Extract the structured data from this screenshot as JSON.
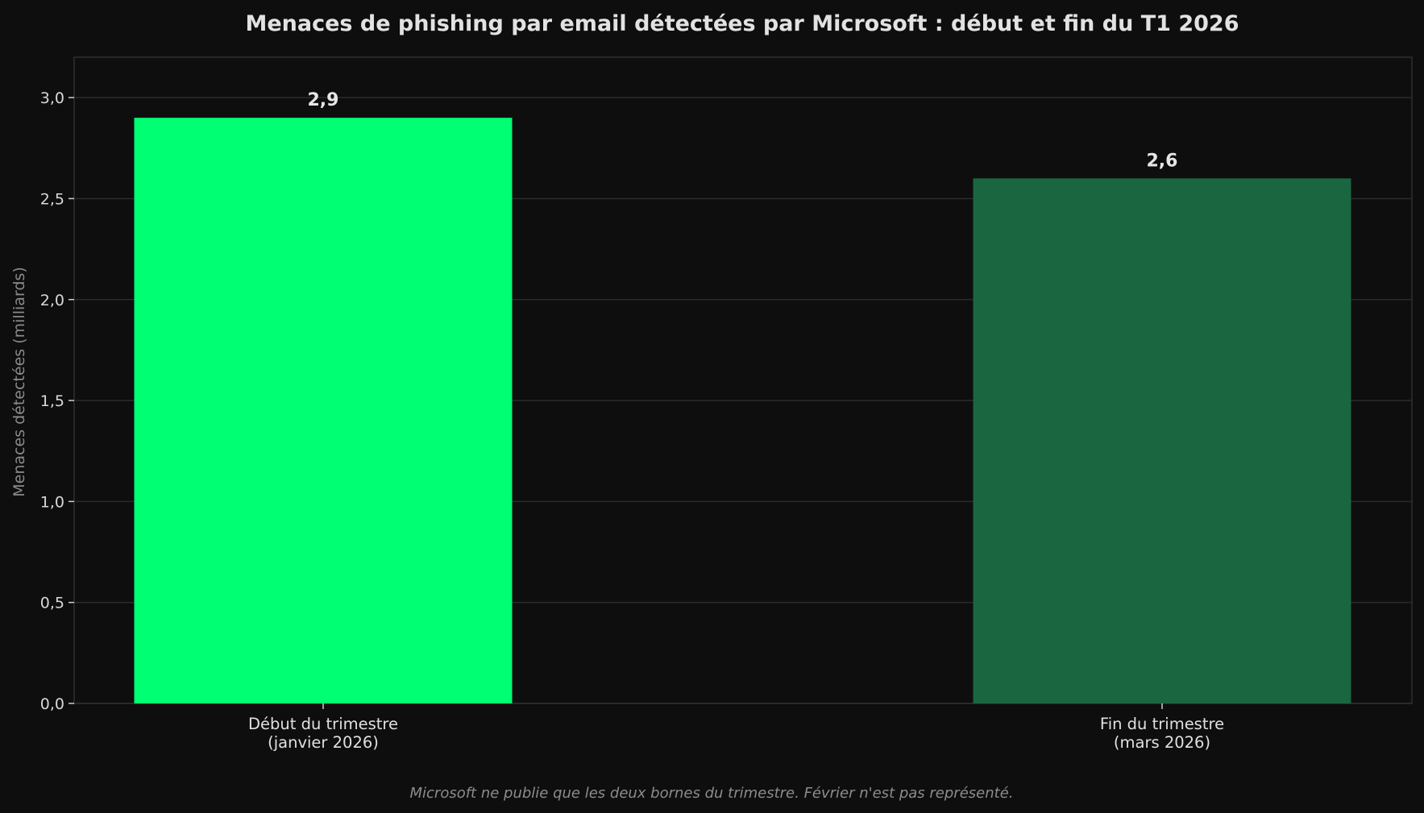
{
  "chart_data": {
    "type": "bar",
    "title": "Menaces de phishing par email détectées par Microsoft : début et fin du T1 2026",
    "xlabel": "",
    "ylabel": "Menaces détectées (milliards)",
    "categories": [
      [
        "Début du trimestre",
        "(janvier 2026)"
      ],
      [
        "Fin du trimestre",
        "(mars 2026)"
      ]
    ],
    "values": [
      2.9,
      2.6
    ],
    "value_labels": [
      "2,9",
      "2,6"
    ],
    "bar_colors": [
      "#00ff73",
      "#1a6640"
    ],
    "ylim": [
      0,
      3.2
    ],
    "yticks": [
      0.0,
      0.5,
      1.0,
      1.5,
      2.0,
      2.5,
      3.0
    ],
    "ytick_labels": [
      "0,0",
      "0,5",
      "1,0",
      "1,5",
      "2,0",
      "2,5",
      "3,0"
    ],
    "grid": true,
    "footnote": "Microsoft ne publie que les deux bornes du trimestre. Février n'est pas représenté."
  }
}
